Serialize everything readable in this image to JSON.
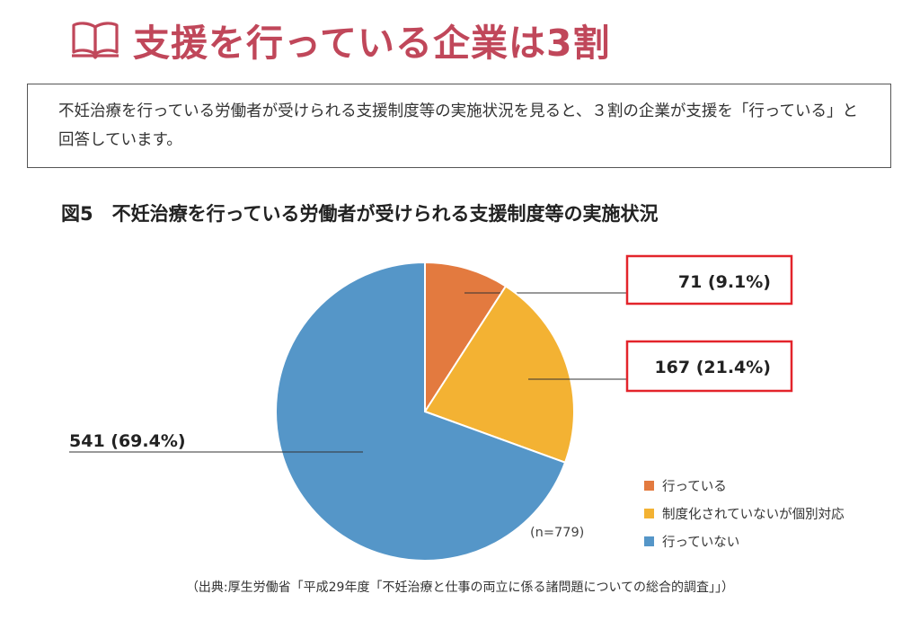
{
  "heading": {
    "text": "支援を行っている企業は3割",
    "icon": "open-book-icon",
    "color": "#c0475a"
  },
  "description": "不妊治療を行っている労働者が受けられる支援制度等の実施状況を見ると、３割の企業が支援を「行っている」と回答しています。",
  "figure_title": "図5　不妊治療を行っている労働者が受けられる支援制度等の実施状況",
  "sample_size": "(n=779)",
  "source": "（出典:厚生労働省「平成29年度「不妊治療と仕事の両立に係る諸問題についての総合的調査」」）",
  "highlight_color": "#e3242b",
  "chart_data": {
    "type": "pie",
    "title": "図5　不妊治療を行っている労働者が受けられる支援制度等の実施状況",
    "n": 779,
    "start": "12 o'clock, clockwise",
    "slices": [
      {
        "label": "行っている",
        "value": 71,
        "percent": 9.1,
        "value_label": "71 (9.1%)",
        "color": "#e37a3f",
        "highlighted": true
      },
      {
        "label": "制度化されていないが個別対応",
        "value": 167,
        "percent": 21.4,
        "value_label": "167 (21.4%)",
        "color": "#f3b233",
        "highlighted": true
      },
      {
        "label": "行っていない",
        "value": 541,
        "percent": 69.4,
        "value_label": "541 (69.4%)",
        "color": "#5596c8",
        "highlighted": false
      }
    ],
    "legend_position": "bottom-right"
  }
}
